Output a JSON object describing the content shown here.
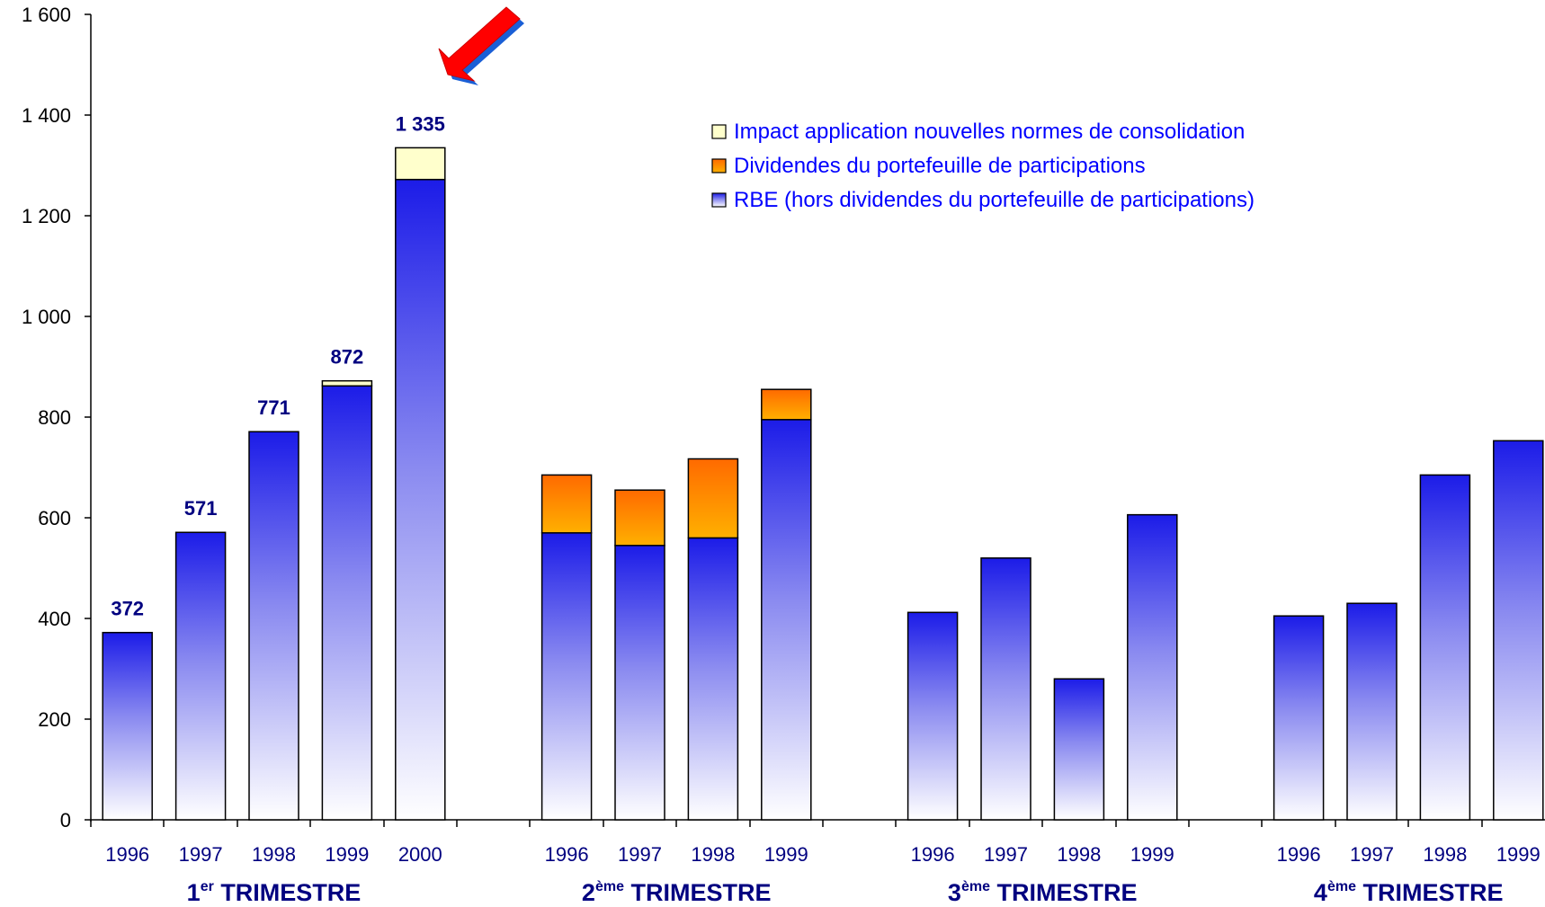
{
  "chart_data": {
    "type": "bar",
    "stacked": true,
    "ylim": [
      0,
      1600
    ],
    "yticks": [
      0,
      200,
      400,
      600,
      800,
      1000,
      1200,
      1400,
      1600
    ],
    "ytick_labels": [
      "0",
      "200",
      "400",
      "600",
      "800",
      "1 000",
      "1 200",
      "1 400",
      "1 600"
    ],
    "grid": false,
    "legend_position": "top-right",
    "groups": [
      {
        "label_main": "1",
        "label_sup": "er",
        "label_rest": " TRIMESTRE",
        "categories": [
          "1996",
          "1997",
          "1998",
          "1999",
          "2000"
        ]
      },
      {
        "label_main": "2",
        "label_sup": "ème",
        "label_rest": " TRIMESTRE",
        "categories": [
          "1996",
          "1997",
          "1998",
          "1999"
        ]
      },
      {
        "label_main": "3",
        "label_sup": "ème",
        "label_rest": " TRIMESTRE",
        "categories": [
          "1996",
          "1997",
          "1998",
          "1999"
        ]
      },
      {
        "label_main": "4",
        "label_sup": "ème",
        "label_rest": " TRIMESTRE",
        "categories": [
          "1996",
          "1997",
          "1998",
          "1999"
        ]
      }
    ],
    "series": [
      {
        "name": "RBE (hors dividendes du portefeuille de participations)",
        "color": "#2020ee",
        "gradient_to": "#ffffff",
        "values": [
          372,
          571,
          771,
          862,
          1272,
          570,
          545,
          560,
          795,
          412,
          520,
          280,
          606,
          405,
          430,
          685,
          753
        ]
      },
      {
        "name": "Dividendes du portefeuille de participations",
        "color": "#ff8c00",
        "values": [
          0,
          0,
          0,
          0,
          0,
          115,
          110,
          157,
          60,
          0,
          0,
          0,
          0,
          0,
          0,
          0,
          0
        ]
      },
      {
        "name": "Impact application nouvelles normes de consolidation",
        "color": "#ffffcc",
        "values": [
          0,
          0,
          0,
          10,
          63,
          0,
          0,
          0,
          0,
          0,
          0,
          0,
          0,
          0,
          0,
          0,
          0
        ]
      }
    ],
    "data_labels": [
      {
        "index": 0,
        "text": "372",
        "value": 372
      },
      {
        "index": 1,
        "text": "571",
        "value": 571
      },
      {
        "index": 2,
        "text": "771",
        "value": 771
      },
      {
        "index": 3,
        "text": "872",
        "value": 872
      },
      {
        "index": 4,
        "text": "1 335",
        "value": 1335
      }
    ],
    "annotation": {
      "type": "arrow",
      "color": "#ff0000",
      "points_to_index": 4
    }
  }
}
